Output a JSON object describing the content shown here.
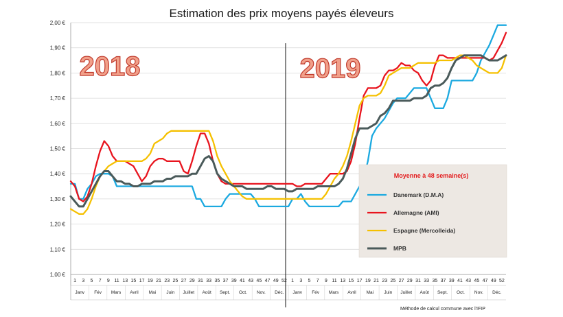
{
  "chart_data": {
    "type": "line",
    "title": "Estimation des prix moyens payés éleveurs",
    "xlabel": "",
    "ylabel": "",
    "ylim": [
      1.0,
      2.0
    ],
    "yticks": [
      "2,00 €",
      "1,90 €",
      "1,80 €",
      "1,70 €",
      "1,60 €",
      "1,50 €",
      "1,40 €",
      "1,30 €",
      "1,20 €",
      "1,10 €",
      "1,00 €"
    ],
    "ytick_values": [
      2.0,
      1.9,
      1.8,
      1.7,
      1.6,
      1.5,
      1.4,
      1.3,
      1.2,
      1.1,
      1.0
    ],
    "week_labels": [
      "1",
      "3",
      "5",
      "7",
      "9",
      "11",
      "13",
      "15",
      "17",
      "19",
      "21",
      "23",
      "25",
      "27",
      "29",
      "31",
      "33",
      "35",
      "37",
      "39",
      "41",
      "43",
      "45",
      "47",
      "49",
      "52",
      "1",
      "3",
      "5",
      "7",
      "9",
      "11",
      "13",
      "15",
      "17",
      "19",
      "21",
      "23",
      "25",
      "27",
      "29",
      "31",
      "33",
      "35",
      "37",
      "39",
      "41",
      "43",
      "45",
      "47",
      "49",
      "52"
    ],
    "month_labels": [
      "Janv",
      "Fév",
      "Mars",
      "Avril",
      "Mai",
      "Juin",
      "Juillet",
      "Août",
      "Sept.",
      "Oct.",
      "Nov.",
      "Déc.",
      "Janv",
      "Fév",
      "Mars",
      "Avril",
      "Mai",
      "Juin",
      "Juillet",
      "Août",
      "Sept.",
      "Oct.",
      "Nov.",
      "Déc."
    ],
    "year_labels": [
      "2018",
      "2019"
    ],
    "legend_title": "Moyenne à  48 semaine(s)",
    "note": "Méthode de calcul commune avec l'IFIP",
    "series": [
      {
        "name": "Danemark (D.M.A)",
        "color": "#1ba9e0",
        "values": [
          1.36,
          1.36,
          1.3,
          1.3,
          1.34,
          1.36,
          1.39,
          1.4,
          1.4,
          1.4,
          1.39,
          1.35,
          1.35,
          1.35,
          1.35,
          1.35,
          1.35,
          1.35,
          1.35,
          1.35,
          1.35,
          1.35,
          1.35,
          1.35,
          1.35,
          1.35,
          1.35,
          1.35,
          1.35,
          1.35,
          1.3,
          1.3,
          1.27,
          1.27,
          1.27,
          1.27,
          1.27,
          1.3,
          1.32,
          1.32,
          1.32,
          1.32,
          1.32,
          1.32,
          1.3,
          1.27,
          1.27,
          1.27,
          1.27,
          1.27,
          1.27,
          1.27,
          1.27,
          1.3,
          1.3,
          1.32,
          1.29,
          1.27,
          1.27,
          1.27,
          1.27,
          1.27,
          1.27,
          1.27,
          1.27,
          1.29,
          1.29,
          1.29,
          1.32,
          1.35,
          1.38,
          1.45,
          1.55,
          1.58,
          1.6,
          1.62,
          1.65,
          1.68,
          1.7,
          1.7,
          1.7,
          1.72,
          1.74,
          1.74,
          1.74,
          1.74,
          1.7,
          1.66,
          1.66,
          1.66,
          1.7,
          1.77,
          1.77,
          1.77,
          1.77,
          1.77,
          1.77,
          1.8,
          1.85,
          1.88,
          1.91,
          1.95,
          1.99,
          1.99,
          1.99
        ]
      },
      {
        "name": "Allemagne (AMI)",
        "color": "#e8141e",
        "values": [
          1.37,
          1.35,
          1.3,
          1.29,
          1.31,
          1.36,
          1.43,
          1.49,
          1.53,
          1.51,
          1.47,
          1.45,
          1.45,
          1.45,
          1.44,
          1.43,
          1.4,
          1.37,
          1.39,
          1.43,
          1.45,
          1.46,
          1.46,
          1.45,
          1.45,
          1.45,
          1.45,
          1.41,
          1.4,
          1.45,
          1.51,
          1.56,
          1.56,
          1.52,
          1.45,
          1.4,
          1.37,
          1.36,
          1.36,
          1.36,
          1.36,
          1.36,
          1.36,
          1.36,
          1.36,
          1.36,
          1.36,
          1.36,
          1.36,
          1.36,
          1.36,
          1.36,
          1.36,
          1.36,
          1.35,
          1.35,
          1.36,
          1.36,
          1.36,
          1.36,
          1.36,
          1.38,
          1.4,
          1.4,
          1.4,
          1.4,
          1.41,
          1.45,
          1.52,
          1.62,
          1.71,
          1.74,
          1.74,
          1.74,
          1.75,
          1.79,
          1.81,
          1.81,
          1.82,
          1.84,
          1.83,
          1.83,
          1.81,
          1.8,
          1.77,
          1.75,
          1.77,
          1.83,
          1.87,
          1.87,
          1.86,
          1.86,
          1.86,
          1.86,
          1.86,
          1.86,
          1.86,
          1.86,
          1.86,
          1.86,
          1.85,
          1.86,
          1.89,
          1.92,
          1.96
        ]
      },
      {
        "name": "Espagne (Mercolleida)",
        "color": "#f5c000",
        "values": [
          1.26,
          1.25,
          1.24,
          1.24,
          1.26,
          1.3,
          1.35,
          1.39,
          1.41,
          1.43,
          1.44,
          1.45,
          1.45,
          1.45,
          1.45,
          1.45,
          1.45,
          1.45,
          1.46,
          1.48,
          1.52,
          1.53,
          1.54,
          1.56,
          1.57,
          1.57,
          1.57,
          1.57,
          1.57,
          1.57,
          1.57,
          1.57,
          1.57,
          1.57,
          1.53,
          1.47,
          1.43,
          1.4,
          1.37,
          1.35,
          1.33,
          1.31,
          1.3,
          1.3,
          1.3,
          1.3,
          1.3,
          1.3,
          1.3,
          1.3,
          1.3,
          1.3,
          1.3,
          1.3,
          1.3,
          1.3,
          1.3,
          1.3,
          1.3,
          1.3,
          1.3,
          1.32,
          1.35,
          1.38,
          1.4,
          1.43,
          1.47,
          1.53,
          1.6,
          1.67,
          1.7,
          1.71,
          1.71,
          1.71,
          1.72,
          1.75,
          1.79,
          1.8,
          1.81,
          1.82,
          1.82,
          1.82,
          1.83,
          1.84,
          1.84,
          1.84,
          1.84,
          1.84,
          1.85,
          1.85,
          1.85,
          1.85,
          1.86,
          1.87,
          1.87,
          1.86,
          1.85,
          1.83,
          1.82,
          1.81,
          1.8,
          1.8,
          1.8,
          1.82,
          1.87
        ]
      },
      {
        "name": "MPB",
        "color": "#4a5a5a",
        "values": [
          1.31,
          1.29,
          1.27,
          1.27,
          1.3,
          1.33,
          1.36,
          1.39,
          1.41,
          1.41,
          1.39,
          1.37,
          1.37,
          1.36,
          1.36,
          1.35,
          1.35,
          1.36,
          1.36,
          1.36,
          1.37,
          1.37,
          1.37,
          1.38,
          1.38,
          1.39,
          1.39,
          1.39,
          1.39,
          1.4,
          1.4,
          1.43,
          1.46,
          1.47,
          1.45,
          1.4,
          1.38,
          1.37,
          1.36,
          1.35,
          1.35,
          1.35,
          1.34,
          1.34,
          1.34,
          1.34,
          1.34,
          1.35,
          1.35,
          1.34,
          1.34,
          1.34,
          1.33,
          1.33,
          1.34,
          1.34,
          1.34,
          1.34,
          1.34,
          1.35,
          1.35,
          1.35,
          1.35,
          1.35,
          1.36,
          1.38,
          1.42,
          1.48,
          1.54,
          1.58,
          1.58,
          1.58,
          1.59,
          1.6,
          1.63,
          1.64,
          1.66,
          1.69,
          1.69,
          1.69,
          1.69,
          1.69,
          1.7,
          1.7,
          1.7,
          1.71,
          1.74,
          1.75,
          1.75,
          1.76,
          1.78,
          1.82,
          1.85,
          1.86,
          1.87,
          1.87,
          1.87,
          1.87,
          1.87,
          1.86,
          1.85,
          1.85,
          1.85,
          1.86,
          1.87
        ]
      }
    ]
  }
}
